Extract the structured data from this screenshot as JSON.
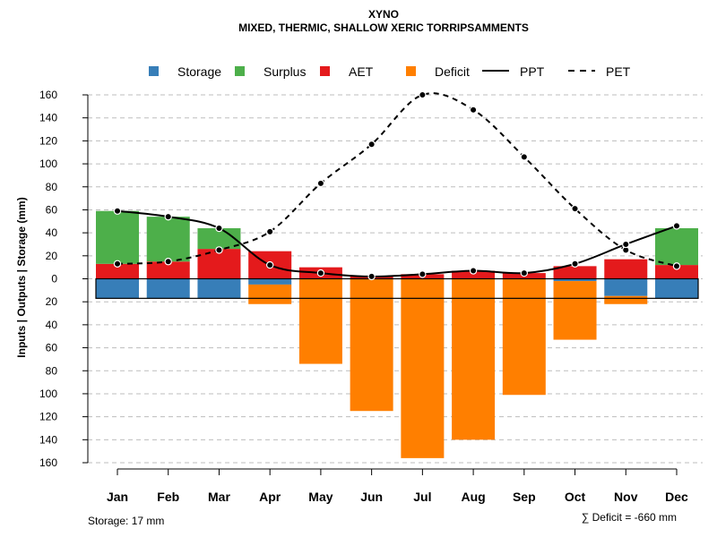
{
  "chart_data": {
    "type": "bar",
    "title": "XYNO",
    "subtitle": "MIXED, THERMIC, SHALLOW XERIC TORRIPSAMMENTS",
    "ylabel": "Inputs | Outputs | Storage    (mm)",
    "ylim": [
      -160,
      160
    ],
    "y_ticks": [
      160,
      140,
      120,
      100,
      80,
      60,
      40,
      20,
      0,
      -20,
      -40,
      -60,
      -80,
      -100,
      -120,
      -140,
      -160
    ],
    "y_tick_labels": [
      "160",
      "140",
      "120",
      "100",
      "80",
      "60",
      "40",
      "20",
      "0",
      "20",
      "40",
      "60",
      "80",
      "100",
      "120",
      "140",
      "160"
    ],
    "categories": [
      "Jan",
      "Feb",
      "Mar",
      "Apr",
      "May",
      "Jun",
      "Jul",
      "Aug",
      "Sep",
      "Oct",
      "Nov",
      "Dec"
    ],
    "grid": "horizontal dashed",
    "legend_position": "top",
    "series": [
      {
        "name": "Storage",
        "color": "#377EB8",
        "values": [
          -17,
          -17,
          -17,
          -5,
          0,
          0,
          0,
          0,
          0,
          -2,
          -15,
          -17
        ]
      },
      {
        "name": "Surplus",
        "color": "#4DAF4A",
        "values": [
          46,
          39,
          18,
          0,
          0,
          0,
          0,
          0,
          0,
          0,
          0,
          32
        ]
      },
      {
        "name": "AET",
        "color": "#E41A1C",
        "values": [
          13,
          15,
          26,
          24,
          10,
          2,
          4,
          7,
          5,
          11,
          17,
          12
        ]
      },
      {
        "name": "Deficit",
        "color": "#FF7F00",
        "values": [
          0,
          0,
          0,
          -17,
          -74,
          -115,
          -156,
          -140,
          -101,
          -51,
          -7,
          0
        ]
      },
      {
        "name": "PPT",
        "color": "#000000",
        "style": "solid",
        "values": [
          59,
          54,
          44,
          12,
          5,
          2,
          4,
          7,
          5,
          13,
          30,
          46
        ]
      },
      {
        "name": "PET",
        "color": "#000000",
        "style": "dashed",
        "values": [
          13,
          15,
          25,
          41,
          83,
          117,
          160,
          147,
          106,
          61,
          25,
          11
        ]
      }
    ],
    "storage_capacity": 17,
    "footnote_left": "Storage: 17 mm",
    "footnote_right": "∑ Deficit = -660 mm"
  }
}
